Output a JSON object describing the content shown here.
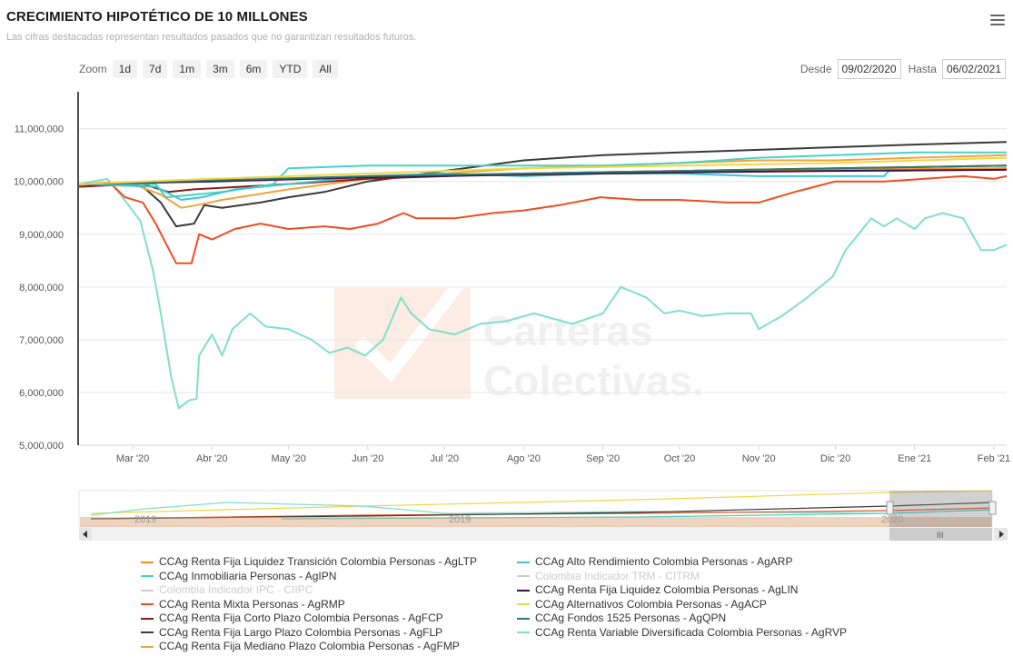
{
  "header": {
    "title": "CRECIMIENTO HIPOTÉTICO DE 10 MILLONES",
    "subtitle": "Las cifras destacadas representan resultados pasados que no garantizan resultados futuros."
  },
  "toolbar": {
    "zoom_label": "Zoom",
    "zoom_buttons": [
      "1d",
      "7d",
      "1m",
      "3m",
      "6m",
      "YTD",
      "All"
    ],
    "from_label": "Desde",
    "from_value": "09/02/2020",
    "to_label": "Hasta",
    "to_value": "06/02/2021"
  },
  "watermark": {
    "line1": "Carteras",
    "line2": "Colectivas."
  },
  "colors": {
    "AgLTP": "#f28f1a",
    "AgIPN": "#48d1c8",
    "CIIPC": "#c8c8c8",
    "AgRMP": "#ee4d1f",
    "AgFCP": "#8a1d14",
    "AgFLP": "#3a3a3a",
    "AgFMP": "#f2a23a",
    "AgARP": "#3ec6d4",
    "CITRM": "#c8c8c8",
    "AgLIN": "#3b1248",
    "AgACP": "#f2d644",
    "AgQPN": "#2f7a6e",
    "AgRVP": "#7fe0c8"
  },
  "legend": {
    "left": [
      {
        "key": "AgLTP",
        "label": "CCAg Renta Fija Liquidez Transición Colombia Personas - AgLTP",
        "visible": true
      },
      {
        "key": "AgIPN",
        "label": "CCAg Inmobiliaria Personas - AgIPN",
        "visible": true
      },
      {
        "key": "CIIPC",
        "label": "Colombia Indicador IPC - CIIPC",
        "visible": false
      },
      {
        "key": "AgRMP",
        "label": "CCAg Renta Mixta Personas - AgRMP",
        "visible": true
      },
      {
        "key": "AgFCP",
        "label": "CCAg Renta Fija Corto Plazo Colombia Personas - AgFCP",
        "visible": true
      },
      {
        "key": "AgFLP",
        "label": "CCAg Renta Fija Largo Plazo Colombia Personas - AgFLP",
        "visible": true
      },
      {
        "key": "AgFMP",
        "label": "CCAg Renta Fija Mediano Plazo Colombia Personas - AgFMP",
        "visible": true
      }
    ],
    "right": [
      {
        "key": "AgARP",
        "label": "CCAg Alto Rendimiento Colombia Personas - AgARP",
        "visible": true
      },
      {
        "key": "CITRM",
        "label": "Colombia Indicador TRM - CITRM",
        "visible": false
      },
      {
        "key": "AgLIN",
        "label": "CCAg Renta Fija Liquidez Colombia Personas - AgLIN",
        "visible": true
      },
      {
        "key": "AgACP",
        "label": "CCAg Alternativos Colombia Personas - AgACP",
        "visible": true
      },
      {
        "key": "AgQPN",
        "label": "CCAg Fondos 1525 Personas - AgQPN",
        "visible": true
      },
      {
        "key": "AgRVP",
        "label": "CCAg Renta Variable Diversificada Colombia Personas - AgRVP",
        "visible": true
      }
    ]
  },
  "navigator": {
    "labels": [
      "2019",
      "2019",
      "2020"
    ]
  },
  "chart_data": {
    "type": "line",
    "title": "CRECIMIENTO HIPOTÉTICO DE 10 MILLONES",
    "x_ticks": [
      "Mar '20",
      "Abr '20",
      "May '20",
      "Jun '20",
      "Jul '20",
      "Ago '20",
      "Sep '20",
      "Oct '20",
      "Nov '20",
      "Dic '20",
      "Ene '21",
      "Feb '21"
    ],
    "y_ticks": [
      "5,000,000",
      "6,000,000",
      "7,000,000",
      "8,000,000",
      "9,000,000",
      "10,000,000",
      "11,000,000"
    ],
    "ylim": [
      5000000,
      11700000
    ],
    "xlim": [
      "2020-02-09",
      "2021-02-06"
    ],
    "grid": "horizontal",
    "series": [
      {
        "key": "AgRVP",
        "name": "CCAg Renta Variable Diversificada Colombia Personas - AgRVP",
        "points": [
          [
            "2020-02-09",
            9950000
          ],
          [
            "2020-02-20",
            10050000
          ],
          [
            "2020-02-26",
            9700000
          ],
          [
            "2020-03-04",
            9250000
          ],
          [
            "2020-03-09",
            8300000
          ],
          [
            "2020-03-12",
            7500000
          ],
          [
            "2020-03-16",
            6300000
          ],
          [
            "2020-03-19",
            5700000
          ],
          [
            "2020-03-23",
            5850000
          ],
          [
            "2020-03-26",
            5880000
          ],
          [
            "2020-03-27",
            6700000
          ],
          [
            "2020-04-01",
            7100000
          ],
          [
            "2020-04-05",
            6700000
          ],
          [
            "2020-04-09",
            7200000
          ],
          [
            "2020-04-16",
            7500000
          ],
          [
            "2020-04-22",
            7250000
          ],
          [
            "2020-05-01",
            7200000
          ],
          [
            "2020-05-10",
            7000000
          ],
          [
            "2020-05-17",
            6750000
          ],
          [
            "2020-05-24",
            6850000
          ],
          [
            "2020-05-31",
            6700000
          ],
          [
            "2020-06-07",
            7000000
          ],
          [
            "2020-06-14",
            7800000
          ],
          [
            "2020-06-18",
            7500000
          ],
          [
            "2020-06-25",
            7200000
          ],
          [
            "2020-07-05",
            7100000
          ],
          [
            "2020-07-15",
            7300000
          ],
          [
            "2020-07-25",
            7350000
          ],
          [
            "2020-08-05",
            7500000
          ],
          [
            "2020-08-20",
            7300000
          ],
          [
            "2020-09-01",
            7500000
          ],
          [
            "2020-09-08",
            8000000
          ],
          [
            "2020-09-18",
            7800000
          ],
          [
            "2020-09-25",
            7500000
          ],
          [
            "2020-10-01",
            7550000
          ],
          [
            "2020-10-10",
            7450000
          ],
          [
            "2020-10-20",
            7500000
          ],
          [
            "2020-10-29",
            7500000
          ],
          [
            "2020-11-01",
            7200000
          ],
          [
            "2020-11-10",
            7450000
          ],
          [
            "2020-11-20",
            7800000
          ],
          [
            "2020-11-30",
            8200000
          ],
          [
            "2020-12-05",
            8700000
          ],
          [
            "2020-12-10",
            9000000
          ],
          [
            "2020-12-15",
            9300000
          ],
          [
            "2020-12-20",
            9150000
          ],
          [
            "2020-12-25",
            9300000
          ],
          [
            "2021-01-01",
            9100000
          ],
          [
            "2021-01-05",
            9300000
          ],
          [
            "2021-01-12",
            9400000
          ],
          [
            "2021-01-20",
            9300000
          ],
          [
            "2021-01-27",
            8700000
          ],
          [
            "2021-02-01",
            8700000
          ],
          [
            "2021-02-06",
            8800000
          ]
        ]
      },
      {
        "key": "AgRMP",
        "name": "CCAg Renta Mixta Personas - AgRMP",
        "points": [
          [
            "2020-02-09",
            9950000
          ],
          [
            "2020-02-21",
            9980000
          ],
          [
            "2020-02-27",
            9700000
          ],
          [
            "2020-03-05",
            9600000
          ],
          [
            "2020-03-10",
            9200000
          ],
          [
            "2020-03-18",
            8450000
          ],
          [
            "2020-03-24",
            8450000
          ],
          [
            "2020-03-27",
            9000000
          ],
          [
            "2020-04-01",
            8900000
          ],
          [
            "2020-04-10",
            9100000
          ],
          [
            "2020-04-20",
            9200000
          ],
          [
            "2020-05-01",
            9100000
          ],
          [
            "2020-05-15",
            9150000
          ],
          [
            "2020-05-25",
            9100000
          ],
          [
            "2020-06-05",
            9200000
          ],
          [
            "2020-06-15",
            9400000
          ],
          [
            "2020-06-20",
            9300000
          ],
          [
            "2020-07-05",
            9300000
          ],
          [
            "2020-07-20",
            9400000
          ],
          [
            "2020-08-01",
            9450000
          ],
          [
            "2020-08-15",
            9550000
          ],
          [
            "2020-08-31",
            9700000
          ],
          [
            "2020-09-15",
            9650000
          ],
          [
            "2020-10-01",
            9650000
          ],
          [
            "2020-10-20",
            9600000
          ],
          [
            "2020-11-01",
            9600000
          ],
          [
            "2020-11-15",
            9800000
          ],
          [
            "2020-12-01",
            10000000
          ],
          [
            "2020-12-20",
            10000000
          ],
          [
            "2021-01-05",
            10050000
          ],
          [
            "2021-01-20",
            10100000
          ],
          [
            "2021-02-01",
            10050000
          ],
          [
            "2021-02-06",
            10100000
          ]
        ]
      },
      {
        "key": "AgFLP",
        "name": "CCAg Renta Fija Largo Plazo Colombia Personas - AgFLP",
        "points": [
          [
            "2020-02-09",
            9900000
          ],
          [
            "2020-02-25",
            9950000
          ],
          [
            "2020-03-05",
            9900000
          ],
          [
            "2020-03-12",
            9600000
          ],
          [
            "2020-03-18",
            9150000
          ],
          [
            "2020-03-25",
            9200000
          ],
          [
            "2020-03-29",
            9550000
          ],
          [
            "2020-04-05",
            9500000
          ],
          [
            "2020-04-20",
            9600000
          ],
          [
            "2020-05-01",
            9700000
          ],
          [
            "2020-05-15",
            9800000
          ],
          [
            "2020-06-01",
            10000000
          ],
          [
            "2020-07-01",
            10200000
          ],
          [
            "2020-08-01",
            10400000
          ],
          [
            "2020-09-01",
            10500000
          ],
          [
            "2020-10-01",
            10550000
          ],
          [
            "2020-11-01",
            10600000
          ],
          [
            "2020-12-01",
            10650000
          ],
          [
            "2021-01-01",
            10700000
          ],
          [
            "2021-02-06",
            10750000
          ]
        ]
      },
      {
        "key": "AgFMP",
        "name": "CCAg Renta Fija Mediano Plazo Colombia Personas - AgFMP",
        "points": [
          [
            "2020-02-09",
            9900000
          ],
          [
            "2020-03-01",
            9950000
          ],
          [
            "2020-03-12",
            9750000
          ],
          [
            "2020-03-20",
            9500000
          ],
          [
            "2020-03-26",
            9550000
          ],
          [
            "2020-04-05",
            9650000
          ],
          [
            "2020-05-01",
            9850000
          ],
          [
            "2020-06-01",
            10050000
          ],
          [
            "2020-07-01",
            10150000
          ],
          [
            "2020-08-01",
            10250000
          ],
          [
            "2020-09-01",
            10300000
          ],
          [
            "2020-10-01",
            10350000
          ],
          [
            "2020-11-01",
            10400000
          ],
          [
            "2020-12-01",
            10400000
          ],
          [
            "2021-01-01",
            10450000
          ],
          [
            "2021-02-06",
            10500000
          ]
        ]
      },
      {
        "key": "AgFCP",
        "name": "CCAg Renta Fija Corto Plazo Colombia Personas - AgFCP",
        "points": [
          [
            "2020-02-09",
            9900000
          ],
          [
            "2020-03-05",
            9950000
          ],
          [
            "2020-03-15",
            9800000
          ],
          [
            "2020-03-25",
            9850000
          ],
          [
            "2020-05-01",
            9950000
          ],
          [
            "2020-06-01",
            10050000
          ],
          [
            "2020-08-01",
            10150000
          ],
          [
            "2020-10-01",
            10200000
          ],
          [
            "2020-12-01",
            10250000
          ],
          [
            "2021-02-06",
            10300000
          ]
        ]
      },
      {
        "key": "AgIPN",
        "name": "CCAg Inmobiliaria Personas - AgIPN",
        "points": [
          [
            "2020-02-09",
            9950000
          ],
          [
            "2020-03-10",
            9950000
          ],
          [
            "2020-03-14",
            9700000
          ],
          [
            "2020-03-25",
            9750000
          ],
          [
            "2020-04-05",
            9800000
          ],
          [
            "2020-04-25",
            9950000
          ],
          [
            "2020-05-01",
            10250000
          ],
          [
            "2020-06-01",
            10300000
          ],
          [
            "2020-07-01",
            10300000
          ],
          [
            "2020-08-01",
            10300000
          ],
          [
            "2020-09-01",
            10300000
          ],
          [
            "2020-10-01",
            10350000
          ],
          [
            "2020-11-01",
            10450000
          ],
          [
            "2020-12-01",
            10500000
          ],
          [
            "2021-01-01",
            10550000
          ],
          [
            "2021-02-06",
            10550000
          ]
        ]
      },
      {
        "key": "AgARP",
        "name": "CCAg Alto Rendimiento Colombia Personas - AgARP",
        "points": [
          [
            "2020-02-09",
            9950000
          ],
          [
            "2020-03-10",
            9900000
          ],
          [
            "2020-03-20",
            9650000
          ],
          [
            "2020-03-28",
            9700000
          ],
          [
            "2020-04-10",
            9850000
          ],
          [
            "2020-05-01",
            9950000
          ],
          [
            "2020-06-01",
            10100000
          ],
          [
            "2020-07-01",
            10150000
          ],
          [
            "2020-08-01",
            10100000
          ],
          [
            "2020-09-01",
            10150000
          ],
          [
            "2020-10-01",
            10150000
          ],
          [
            "2020-11-01",
            10100000
          ],
          [
            "2020-12-20",
            10100000
          ],
          [
            "2020-12-22",
            10200000
          ],
          [
            "2021-02-06",
            10250000
          ]
        ]
      },
      {
        "key": "AgLTP",
        "name": "CCAg Renta Fija Liquidez Transición Colombia Personas - AgLTP",
        "points": [
          [
            "2020-02-09",
            9950000
          ],
          [
            "2020-04-01",
            10000000
          ],
          [
            "2020-06-01",
            10080000
          ],
          [
            "2020-08-01",
            10150000
          ],
          [
            "2020-10-01",
            10200000
          ],
          [
            "2020-12-01",
            10220000
          ],
          [
            "2021-02-06",
            10250000
          ]
        ]
      },
      {
        "key": "AgLIN",
        "name": "CCAg Renta Fija Liquidez Colombia Personas - AgLIN",
        "points": [
          [
            "2020-02-09",
            9950000
          ],
          [
            "2020-04-01",
            10000000
          ],
          [
            "2020-06-01",
            10080000
          ],
          [
            "2020-08-01",
            10130000
          ],
          [
            "2020-10-01",
            10170000
          ],
          [
            "2020-12-01",
            10200000
          ],
          [
            "2021-02-06",
            10220000
          ]
        ]
      },
      {
        "key": "AgQPN",
        "name": "CCAg Fondos 1525 Personas - AgQPN",
        "points": [
          [
            "2020-02-09",
            9950000
          ],
          [
            "2020-04-01",
            10020000
          ],
          [
            "2020-06-01",
            10100000
          ],
          [
            "2020-08-01",
            10150000
          ],
          [
            "2020-10-01",
            10200000
          ],
          [
            "2020-12-01",
            10250000
          ],
          [
            "2021-02-06",
            10300000
          ]
        ]
      },
      {
        "key": "AgACP",
        "name": "CCAg Alternativos Colombia Personas - AgACP",
        "points": [
          [
            "2020-02-09",
            9950000
          ],
          [
            "2020-04-01",
            10050000
          ],
          [
            "2020-06-01",
            10150000
          ],
          [
            "2020-08-01",
            10250000
          ],
          [
            "2020-10-01",
            10300000
          ],
          [
            "2020-12-01",
            10350000
          ],
          [
            "2021-02-06",
            10450000
          ]
        ]
      }
    ]
  }
}
